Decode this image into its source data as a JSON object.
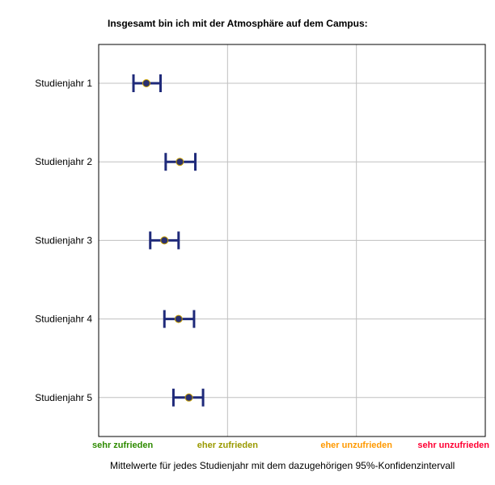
{
  "chart_data": {
    "type": "scatter",
    "title": "Insgesamt bin ich mit der Atmosphäre auf dem Campus:",
    "caption": "Mittelwerte für jedes Studienjahr mit dem dazugehörigen 95%-Konfidenzintervall",
    "categories": [
      "Studienjahr 1",
      "Studienjahr 2",
      "Studienjahr 3",
      "Studienjahr 4",
      "Studienjahr 5"
    ],
    "means": [
      1.37,
      1.63,
      1.51,
      1.62,
      1.7
    ],
    "ci_low": [
      1.27,
      1.52,
      1.4,
      1.51,
      1.58
    ],
    "ci_high": [
      1.48,
      1.75,
      1.62,
      1.74,
      1.81
    ],
    "xlim": [
      1,
      4
    ],
    "x_ticks": [
      {
        "value": 1,
        "label": "sehr zufrieden",
        "color": "#2e8b00"
      },
      {
        "value": 2,
        "label": "eher zufrieden",
        "color": "#9a9a00"
      },
      {
        "value": 3,
        "label": "eher unzufrieden",
        "color": "#ff9900"
      },
      {
        "value": 4,
        "label": "sehr unzufrieden",
        "color": "#ff0033"
      }
    ],
    "grid": true,
    "colors": {
      "errorbar": "#1f2a7a",
      "point_fill": "#2a3070",
      "point_stroke": "#c8a000",
      "grid": "#c0c0c0"
    }
  }
}
